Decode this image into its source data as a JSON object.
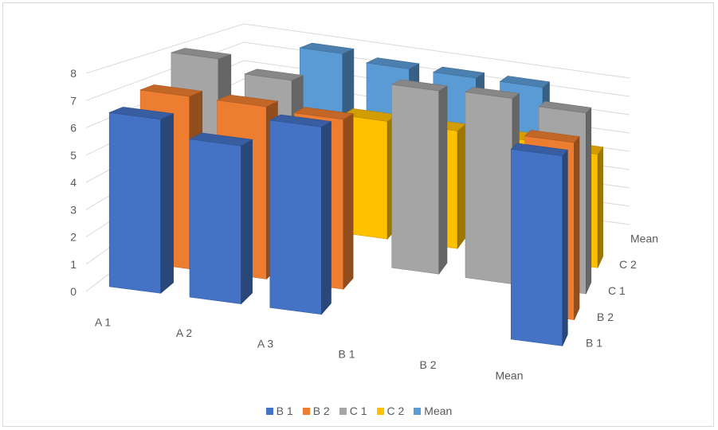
{
  "chart_data": {
    "type": "bar",
    "subtype": "3d-column",
    "title": "",
    "categories": [
      "A 1",
      "A 2",
      "A 3",
      "B 1",
      "B 2",
      "Mean"
    ],
    "depth_categories": [
      "B 1",
      "B 2",
      "C 1",
      "C 2",
      "Mean"
    ],
    "y_ticks": [
      "0",
      "1",
      "2",
      "3",
      "4",
      "5",
      "6",
      "7",
      "8"
    ],
    "ylim": [
      0,
      8
    ],
    "grid": true,
    "legend_position": "bottom",
    "series": [
      {
        "name": "B 1",
        "color": "#4472C4",
        "values": [
          6.5,
          5.9,
          7.0,
          null,
          null,
          7.1
        ]
      },
      {
        "name": "B 2",
        "color": "#ED7D31",
        "values": [
          6.9,
          6.9,
          6.8,
          null,
          null,
          7.1
        ]
      },
      {
        "name": "C 1",
        "color": "#A5A5A5",
        "values": [
          8.0,
          7.5,
          null,
          7.9,
          8.0,
          7.8
        ]
      },
      {
        "name": "C 2",
        "color": "#FFC000",
        "values": [
          null,
          null,
          5.5,
          5.5,
          5.5,
          5.3
        ]
      },
      {
        "name": "Mean",
        "color": "#5B9BD5",
        "values": [
          null,
          7.7,
          7.4,
          7.4,
          7.4,
          null
        ]
      }
    ]
  }
}
